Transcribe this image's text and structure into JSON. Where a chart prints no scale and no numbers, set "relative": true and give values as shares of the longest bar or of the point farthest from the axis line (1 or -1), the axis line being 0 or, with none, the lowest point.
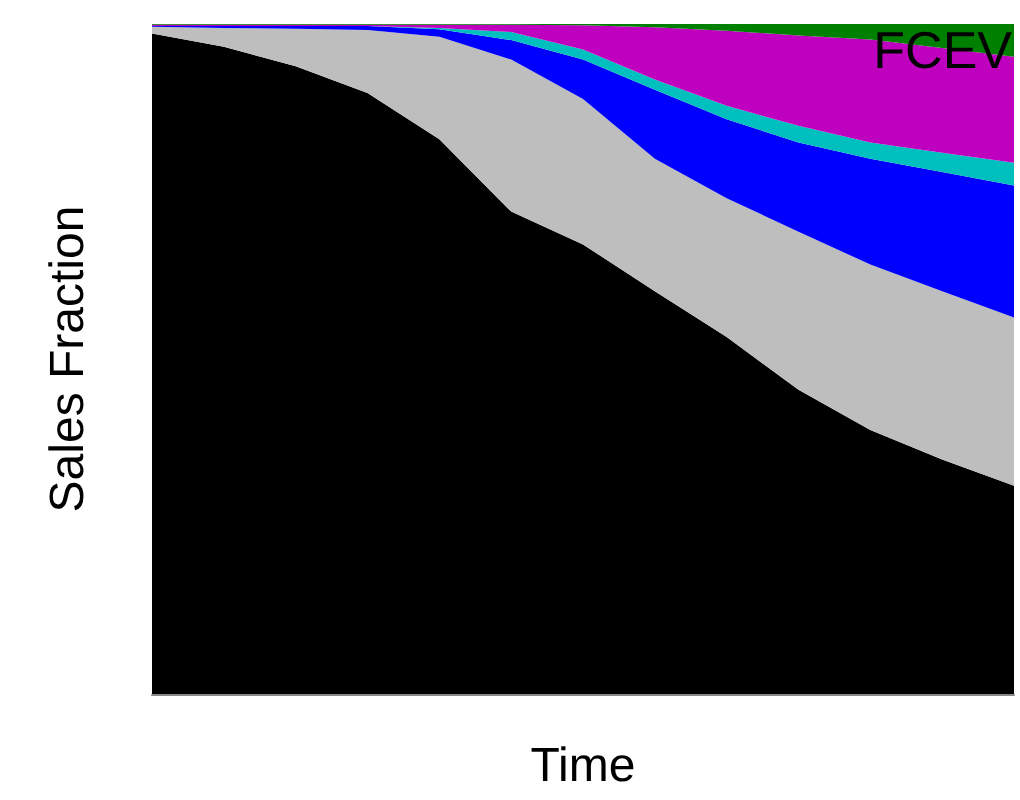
{
  "chart_data": {
    "type": "area",
    "stacked": true,
    "relative": true,
    "xlabel": "Time",
    "ylabel": "Sales Fraction",
    "annotations": [
      "FCEV"
    ],
    "grid": false,
    "marker": "none",
    "categories": [
      null,
      null,
      null,
      null,
      null,
      null,
      null,
      null,
      null,
      null,
      null,
      null,
      null
    ],
    "series": [
      {
        "color": "#000000",
        "values": [
          0.986,
          0.966,
          0.937,
          0.897,
          0.828,
          0.72,
          0.671,
          0.601,
          0.533,
          0.454,
          0.394,
          0.35,
          0.311
        ]
      },
      {
        "color": "#bebebe",
        "values": [
          0.01,
          0.028,
          0.056,
          0.094,
          0.153,
          0.227,
          0.217,
          0.198,
          0.207,
          0.236,
          0.247,
          0.251,
          0.251
        ]
      },
      {
        "color": "#0000ff",
        "values": [
          0.001,
          0.003,
          0.004,
          0.006,
          0.011,
          0.029,
          0.059,
          0.103,
          0.118,
          0.133,
          0.158,
          0.178,
          0.197
        ]
      },
      {
        "color": "#00bfbf",
        "values": [
          0,
          0,
          0,
          0,
          0.002,
          0.012,
          0.015,
          0.015,
          0.02,
          0.025,
          0.024,
          0.029,
          0.034
        ]
      },
      {
        "color": "#bf00bf",
        "values": [
          0.002,
          0.002,
          0.002,
          0.002,
          0.005,
          0.011,
          0.036,
          0.078,
          0.112,
          0.135,
          0.154,
          0.156,
          0.158
        ]
      },
      {
        "color": "#008000",
        "values": [
          0.001,
          0.001,
          0.001,
          0.001,
          0.001,
          0.001,
          0.002,
          0.005,
          0.01,
          0.017,
          0.023,
          0.036,
          0.049
        ]
      }
    ]
  }
}
